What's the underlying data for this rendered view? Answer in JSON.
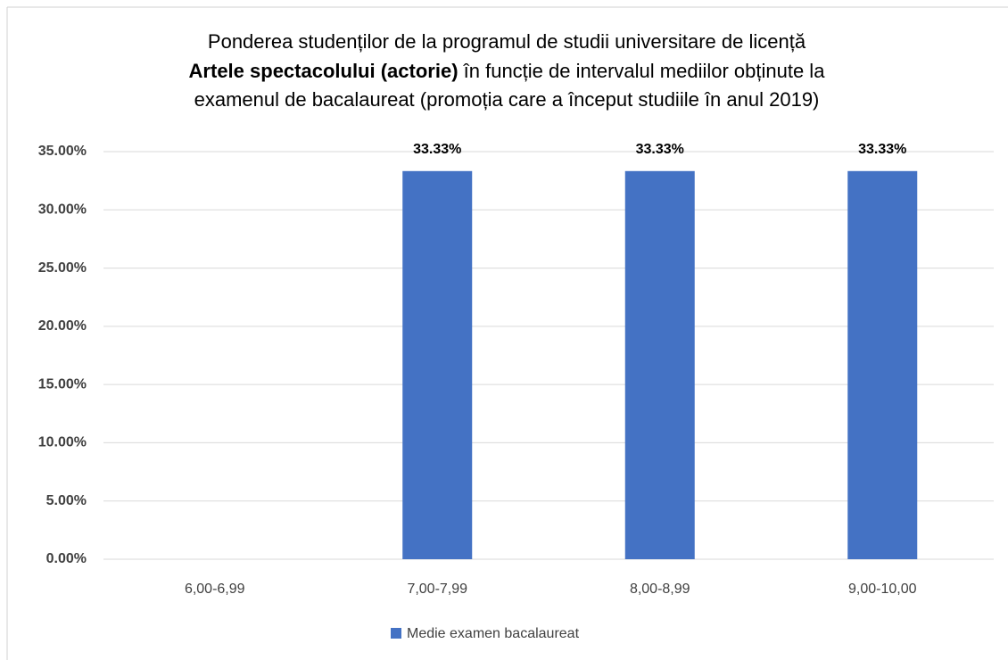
{
  "chart_data": {
    "type": "bar",
    "title": [
      "Ponderea studenților de la programul de studii universitare de licență",
      "Artele spectacolului (actorie)",
      " în funcție de intervalul mediilor obținute la",
      "examenul de bacalaureat (promoția care a început studiile în anul 2019)"
    ],
    "categories": [
      "6,00-6,99",
      "7,00-7,99",
      "8,00-8,99",
      "9,00-10,00"
    ],
    "series": [
      {
        "name": "Medie examen bacalaureat",
        "color": "#4472c4",
        "values": [
          0,
          33.33,
          33.33,
          33.33
        ],
        "value_labels": [
          null,
          "33.33%",
          "33.33%",
          "33.33%"
        ]
      }
    ],
    "ylim": [
      0,
      35
    ],
    "yticks": [
      {
        "value": 0,
        "label": "0.00%"
      },
      {
        "value": 5,
        "label": "5.00%"
      },
      {
        "value": 10,
        "label": "10.00%"
      },
      {
        "value": 15,
        "label": "15.00%"
      },
      {
        "value": 20,
        "label": "20.00%"
      },
      {
        "value": 25,
        "label": "25.00%"
      },
      {
        "value": 30,
        "label": "30.00%"
      },
      {
        "value": 35,
        "label": "35.00%"
      }
    ],
    "grid": true,
    "legend": "bottom"
  }
}
